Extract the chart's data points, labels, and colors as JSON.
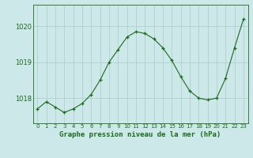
{
  "x": [
    0,
    1,
    2,
    3,
    4,
    5,
    6,
    7,
    8,
    9,
    10,
    11,
    12,
    13,
    14,
    15,
    16,
    17,
    18,
    19,
    20,
    21,
    22,
    23
  ],
  "y": [
    1017.7,
    1017.9,
    1017.75,
    1017.6,
    1017.7,
    1017.85,
    1018.1,
    1018.5,
    1019.0,
    1019.35,
    1019.7,
    1019.85,
    1019.8,
    1019.65,
    1019.4,
    1019.05,
    1018.6,
    1018.2,
    1018.0,
    1017.95,
    1018.0,
    1018.55,
    1019.4,
    1020.2
  ],
  "line_color": "#1a6b1a",
  "marker": "+",
  "marker_color": "#1a6b1a",
  "bg_color": "#cce8e8",
  "grid_color": "#aacccc",
  "xlabel": "Graphe pression niveau de la mer (hPa)",
  "xlabel_color": "#1a6b1a",
  "tick_color": "#1a6b1a",
  "yticks": [
    1018,
    1019,
    1020
  ],
  "ylim": [
    1017.3,
    1020.6
  ],
  "xlim": [
    -0.5,
    23.5
  ],
  "figsize": [
    3.2,
    2.0
  ],
  "dpi": 100
}
